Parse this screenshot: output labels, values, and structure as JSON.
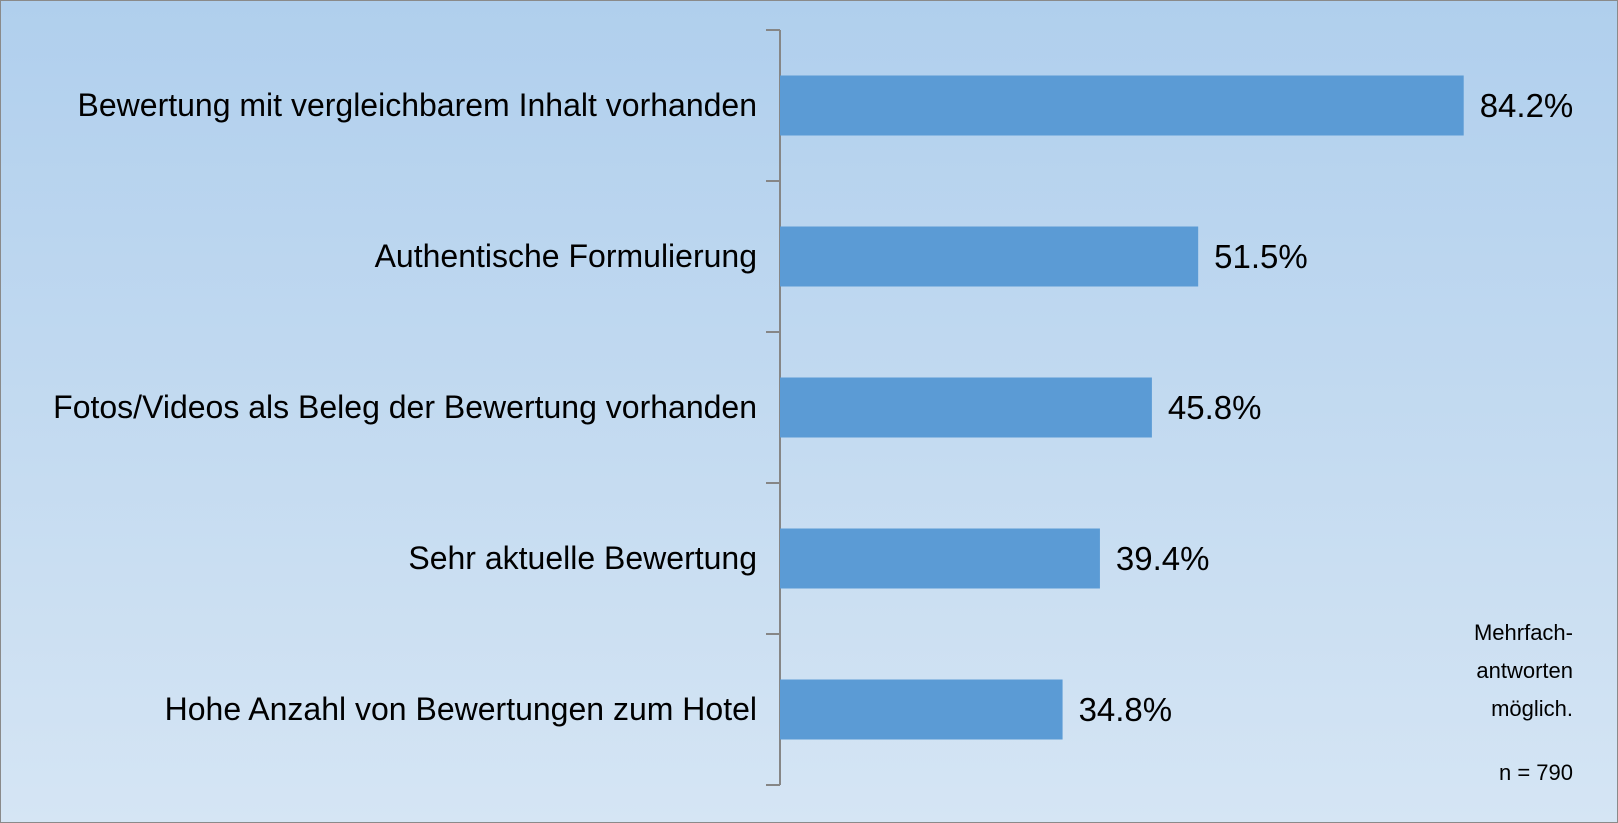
{
  "chart_data": {
    "type": "bar",
    "orientation": "horizontal",
    "categories": [
      "Bewertung mit vergleichbarem Inhalt vorhanden",
      "Authentische Formulierung",
      "Fotos/Videos als Beleg der Bewertung vorhanden",
      "Sehr aktuelle Bewertung",
      "Hohe Anzahl von Bewertungen zum Hotel"
    ],
    "values": [
      84.2,
      51.5,
      45.8,
      39.4,
      34.8
    ],
    "value_labels": [
      "84.2%",
      "51.5%",
      "45.8%",
      "39.4%",
      "34.8%"
    ],
    "color": "#5b9bd5",
    "xlim": [
      0,
      100
    ],
    "annotations": [
      "Mehrfach-antworten möglich.",
      "n = 790"
    ]
  }
}
